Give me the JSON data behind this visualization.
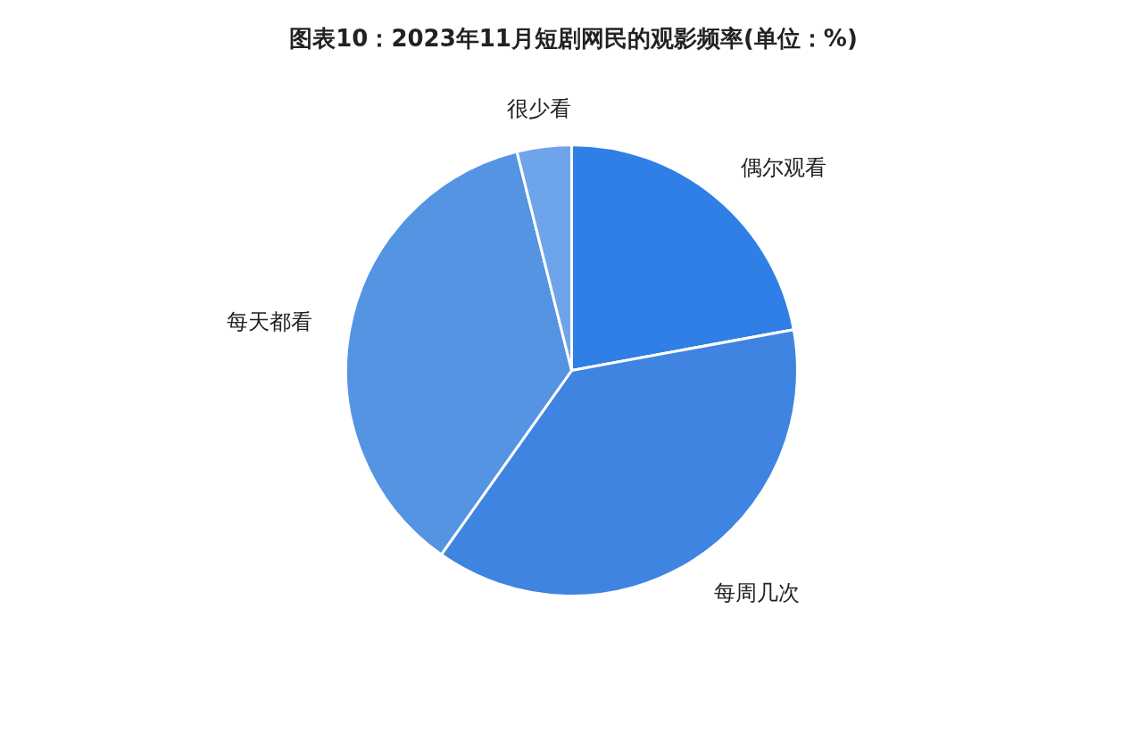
{
  "chart_data": {
    "type": "pie",
    "title": "图表10：2023年11月短剧网民的观影频率(单位：%)",
    "categories": [
      "偶尔观看",
      "每周几次",
      "每天都看",
      "很少看"
    ],
    "values": [
      22.1,
      37.7,
      36.3,
      3.9
    ],
    "colors": [
      "#2f7fe6",
      "#3f84e0",
      "#5593e3",
      "#6ea5ea"
    ]
  }
}
